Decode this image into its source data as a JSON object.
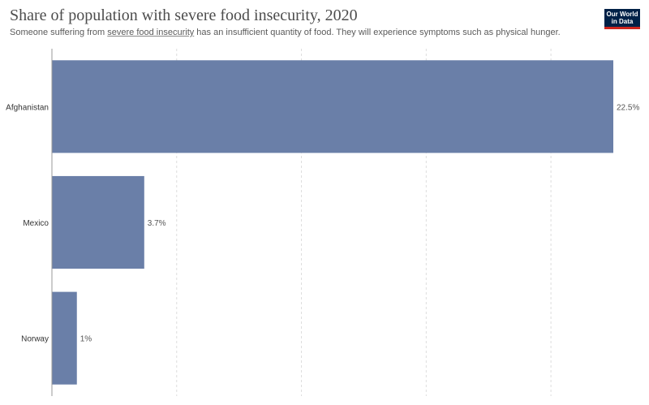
{
  "header": {
    "title": "Share of population with severe food insecurity, 2020",
    "subtitle_before": "Someone suffering from ",
    "subtitle_link": "severe food insecurity",
    "subtitle_after": " has an insufficient quantity of food. They will experience symptoms such as physical hunger.",
    "logo_line1": "Our World",
    "logo_line2": "in Data"
  },
  "colors": {
    "bar": "#6a7fa8",
    "grid": "#dddddd",
    "axis": "#999999",
    "label": "#333333",
    "value_label": "#555555"
  },
  "chart_data": {
    "type": "bar",
    "orientation": "horizontal",
    "categories": [
      "Afghanistan",
      "Mexico",
      "Norway"
    ],
    "values": [
      22.5,
      3.7,
      1.0
    ],
    "value_labels": [
      "22.5%",
      "3.7%",
      "1%"
    ],
    "unit": "%",
    "xlim": [
      0,
      22.5
    ],
    "grid_values": [
      0,
      5,
      10,
      15,
      20
    ],
    "grid": true
  }
}
